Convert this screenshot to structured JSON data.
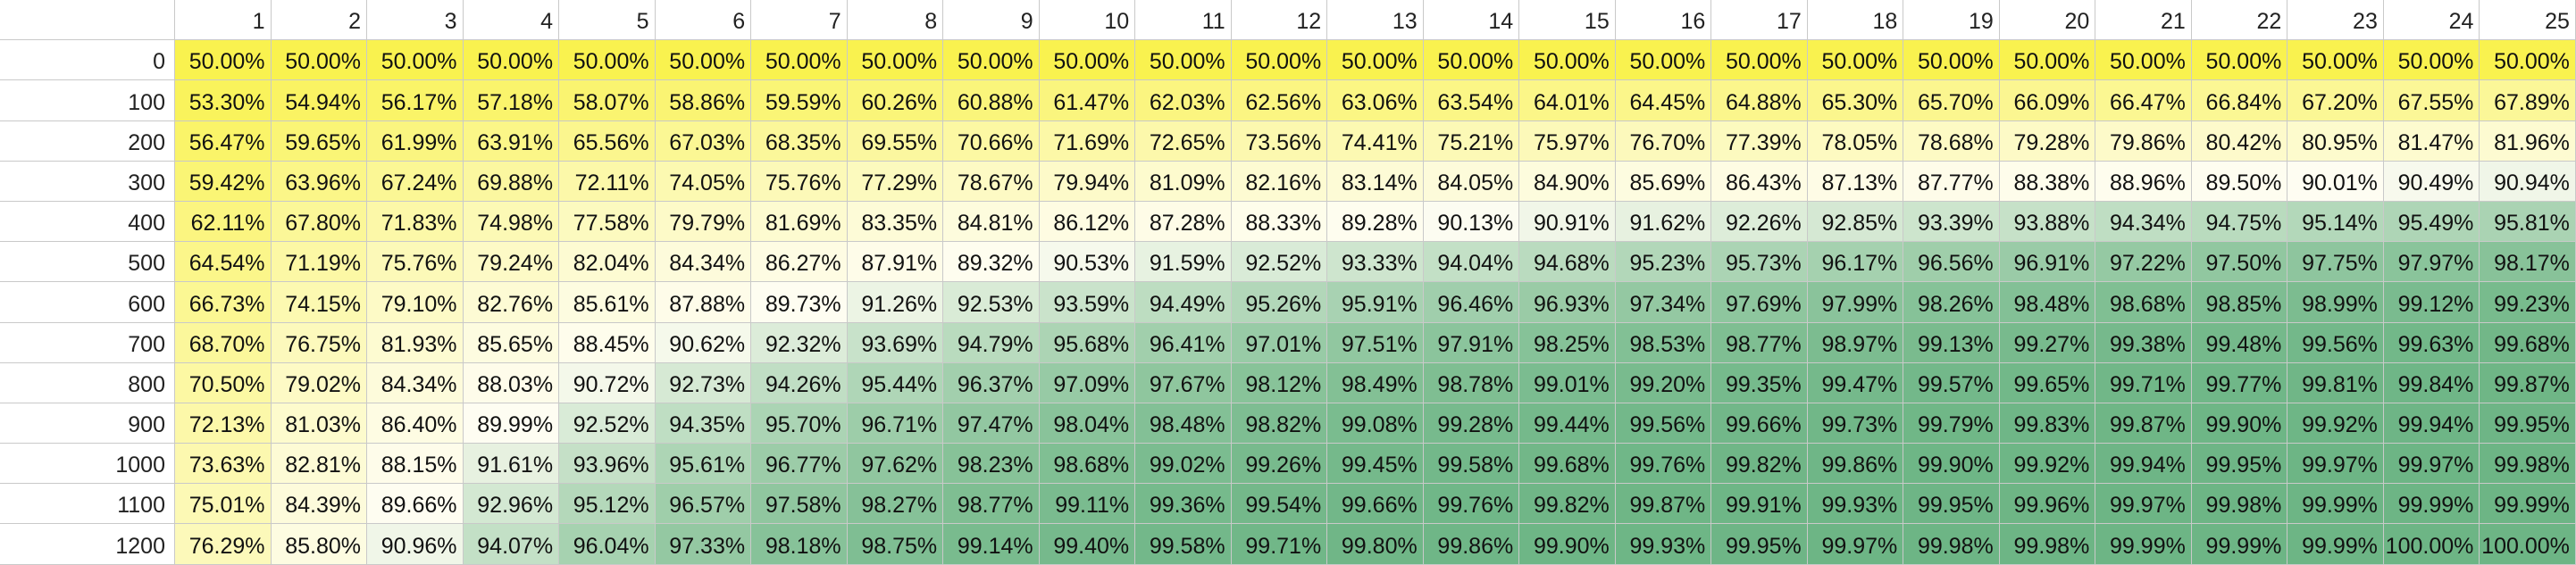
{
  "columns": [
    "1",
    "2",
    "3",
    "4",
    "5",
    "6",
    "7",
    "8",
    "9",
    "10",
    "11",
    "12",
    "13",
    "14",
    "15",
    "16",
    "17",
    "18",
    "19",
    "20",
    "21",
    "22",
    "23",
    "24",
    "25"
  ],
  "colors": {
    "low": "#f9f24f",
    "mid": "#fefdf2",
    "high": "#6db585",
    "grid": "#c9c9c9"
  },
  "rows": [
    {
      "label": "0",
      "values": [
        "50.00%",
        "50.00%",
        "50.00%",
        "50.00%",
        "50.00%",
        "50.00%",
        "50.00%",
        "50.00%",
        "50.00%",
        "50.00%",
        "50.00%",
        "50.00%",
        "50.00%",
        "50.00%",
        "50.00%",
        "50.00%",
        "50.00%",
        "50.00%",
        "50.00%",
        "50.00%",
        "50.00%",
        "50.00%",
        "50.00%",
        "50.00%",
        "50.00%"
      ]
    },
    {
      "label": "100",
      "values": [
        "53.30%",
        "54.94%",
        "56.17%",
        "57.18%",
        "58.07%",
        "58.86%",
        "59.59%",
        "60.26%",
        "60.88%",
        "61.47%",
        "62.03%",
        "62.56%",
        "63.06%",
        "63.54%",
        "64.01%",
        "64.45%",
        "64.88%",
        "65.30%",
        "65.70%",
        "66.09%",
        "66.47%",
        "66.84%",
        "67.20%",
        "67.55%",
        "67.89%"
      ]
    },
    {
      "label": "200",
      "values": [
        "56.47%",
        "59.65%",
        "61.99%",
        "63.91%",
        "65.56%",
        "67.03%",
        "68.35%",
        "69.55%",
        "70.66%",
        "71.69%",
        "72.65%",
        "73.56%",
        "74.41%",
        "75.21%",
        "75.97%",
        "76.70%",
        "77.39%",
        "78.05%",
        "78.68%",
        "79.28%",
        "79.86%",
        "80.42%",
        "80.95%",
        "81.47%",
        "81.96%"
      ]
    },
    {
      "label": "300",
      "values": [
        "59.42%",
        "63.96%",
        "67.24%",
        "69.88%",
        "72.11%",
        "74.05%",
        "75.76%",
        "77.29%",
        "78.67%",
        "79.94%",
        "81.09%",
        "82.16%",
        "83.14%",
        "84.05%",
        "84.90%",
        "85.69%",
        "86.43%",
        "87.13%",
        "87.77%",
        "88.38%",
        "88.96%",
        "89.50%",
        "90.01%",
        "90.49%",
        "90.94%"
      ]
    },
    {
      "label": "400",
      "values": [
        "62.11%",
        "67.80%",
        "71.83%",
        "74.98%",
        "77.58%",
        "79.79%",
        "81.69%",
        "83.35%",
        "84.81%",
        "86.12%",
        "87.28%",
        "88.33%",
        "89.28%",
        "90.13%",
        "90.91%",
        "91.62%",
        "92.26%",
        "92.85%",
        "93.39%",
        "93.88%",
        "94.34%",
        "94.75%",
        "95.14%",
        "95.49%",
        "95.81%"
      ]
    },
    {
      "label": "500",
      "values": [
        "64.54%",
        "71.19%",
        "75.76%",
        "79.24%",
        "82.04%",
        "84.34%",
        "86.27%",
        "87.91%",
        "89.32%",
        "90.53%",
        "91.59%",
        "92.52%",
        "93.33%",
        "94.04%",
        "94.68%",
        "95.23%",
        "95.73%",
        "96.17%",
        "96.56%",
        "96.91%",
        "97.22%",
        "97.50%",
        "97.75%",
        "97.97%",
        "98.17%"
      ]
    },
    {
      "label": "600",
      "values": [
        "66.73%",
        "74.15%",
        "79.10%",
        "82.76%",
        "85.61%",
        "87.88%",
        "89.73%",
        "91.26%",
        "92.53%",
        "93.59%",
        "94.49%",
        "95.26%",
        "95.91%",
        "96.46%",
        "96.93%",
        "97.34%",
        "97.69%",
        "97.99%",
        "98.26%",
        "98.48%",
        "98.68%",
        "98.85%",
        "98.99%",
        "99.12%",
        "99.23%"
      ]
    },
    {
      "label": "700",
      "values": [
        "68.70%",
        "76.75%",
        "81.93%",
        "85.65%",
        "88.45%",
        "90.62%",
        "92.32%",
        "93.69%",
        "94.79%",
        "95.68%",
        "96.41%",
        "97.01%",
        "97.51%",
        "97.91%",
        "98.25%",
        "98.53%",
        "98.77%",
        "98.97%",
        "99.13%",
        "99.27%",
        "99.38%",
        "99.48%",
        "99.56%",
        "99.63%",
        "99.68%"
      ]
    },
    {
      "label": "800",
      "values": [
        "70.50%",
        "79.02%",
        "84.34%",
        "88.03%",
        "90.72%",
        "92.73%",
        "94.26%",
        "95.44%",
        "96.37%",
        "97.09%",
        "97.67%",
        "98.12%",
        "98.49%",
        "98.78%",
        "99.01%",
        "99.20%",
        "99.35%",
        "99.47%",
        "99.57%",
        "99.65%",
        "99.71%",
        "99.77%",
        "99.81%",
        "99.84%",
        "99.87%"
      ]
    },
    {
      "label": "900",
      "values": [
        "72.13%",
        "81.03%",
        "86.40%",
        "89.99%",
        "92.52%",
        "94.35%",
        "95.70%",
        "96.71%",
        "97.47%",
        "98.04%",
        "98.48%",
        "98.82%",
        "99.08%",
        "99.28%",
        "99.44%",
        "99.56%",
        "99.66%",
        "99.73%",
        "99.79%",
        "99.83%",
        "99.87%",
        "99.90%",
        "99.92%",
        "99.94%",
        "99.95%"
      ]
    },
    {
      "label": "1000",
      "values": [
        "73.63%",
        "82.81%",
        "88.15%",
        "91.61%",
        "93.96%",
        "95.61%",
        "96.77%",
        "97.62%",
        "98.23%",
        "98.68%",
        "99.02%",
        "99.26%",
        "99.45%",
        "99.58%",
        "99.68%",
        "99.76%",
        "99.82%",
        "99.86%",
        "99.90%",
        "99.92%",
        "99.94%",
        "99.95%",
        "99.97%",
        "99.97%",
        "99.98%"
      ]
    },
    {
      "label": "1100",
      "values": [
        "75.01%",
        "84.39%",
        "89.66%",
        "92.96%",
        "95.12%",
        "96.57%",
        "97.58%",
        "98.27%",
        "98.77%",
        "99.11%",
        "99.36%",
        "99.54%",
        "99.66%",
        "99.76%",
        "99.82%",
        "99.87%",
        "99.91%",
        "99.93%",
        "99.95%",
        "99.96%",
        "99.97%",
        "99.98%",
        "99.99%",
        "99.99%",
        "99.99%"
      ]
    },
    {
      "label": "1200",
      "values": [
        "76.29%",
        "85.80%",
        "90.96%",
        "94.07%",
        "96.04%",
        "97.33%",
        "98.18%",
        "98.75%",
        "99.14%",
        "99.40%",
        "99.58%",
        "99.71%",
        "99.80%",
        "99.86%",
        "99.90%",
        "99.93%",
        "99.95%",
        "99.97%",
        "99.98%",
        "99.98%",
        "99.99%",
        "99.99%",
        "99.99%",
        "100.00%",
        "100.00%"
      ]
    }
  ]
}
